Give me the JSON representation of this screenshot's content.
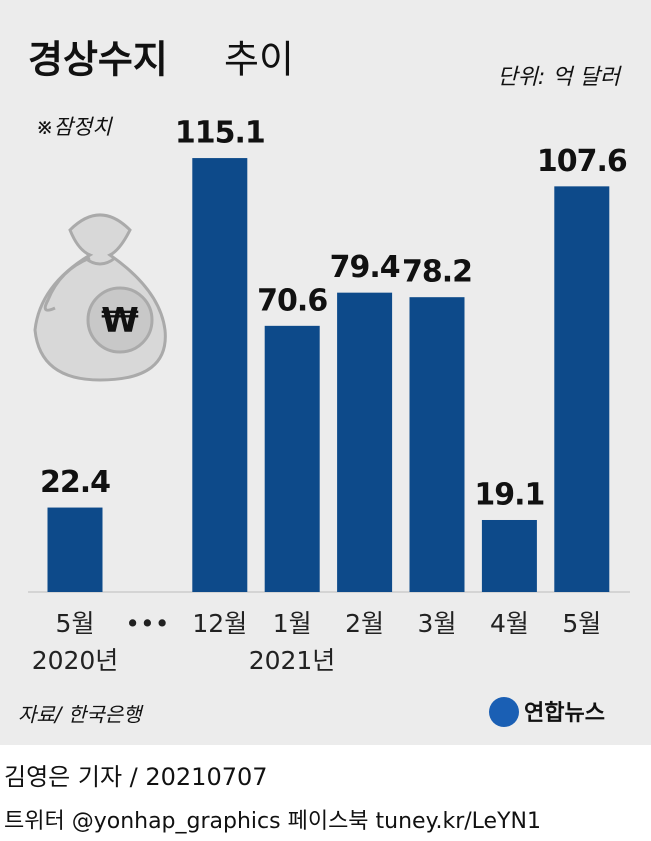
{
  "chart_data": {
    "type": "bar",
    "title": "경상수지",
    "title_suffix": "추이",
    "unit": "단위: 억 달러",
    "note": "※잠정치",
    "categories": [
      "5월",
      "•••",
      "12월",
      "1월",
      "2월",
      "3월",
      "4월",
      "5월"
    ],
    "values": [
      22.4,
      null,
      115.1,
      70.6,
      79.4,
      78.2,
      19.1,
      107.6
    ],
    "color": "#0d4a8a",
    "year_labels": [
      "2020년",
      "2021년"
    ],
    "source": "자료/ 한국은행",
    "logo": "연합뉴스",
    "byline": "김영은 기자 / 20210707",
    "social": "트위터 @yonhap_graphics  페이스북 tuney.kr/LeYN1"
  }
}
